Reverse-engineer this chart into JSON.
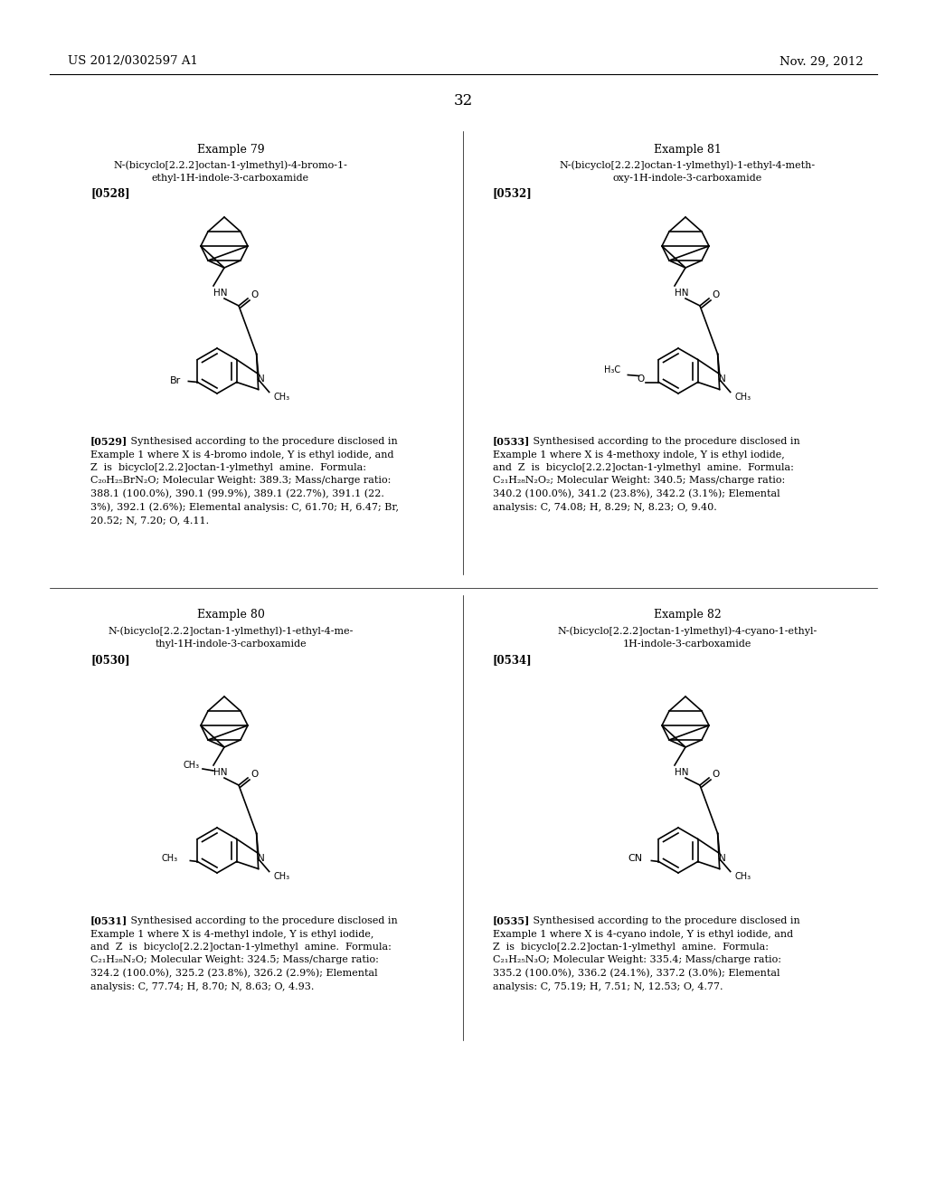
{
  "background_color": "#ffffff",
  "header_left": "US 2012/0302597 A1",
  "header_right": "Nov. 29, 2012",
  "page_number": "32"
}
